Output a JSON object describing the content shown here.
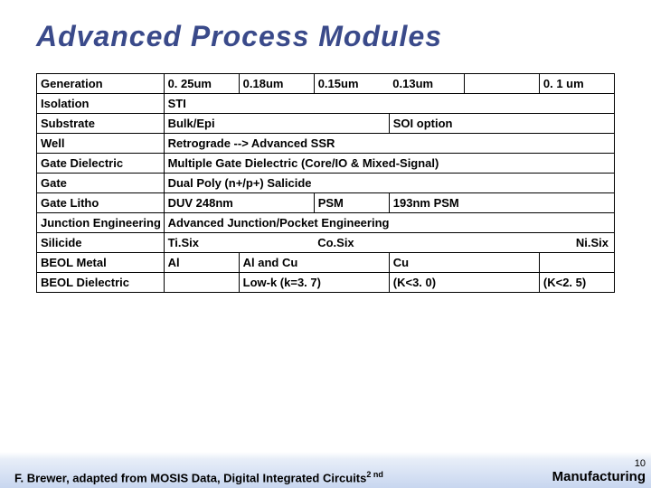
{
  "title": "Advanced Process Modules",
  "page_number": "10",
  "footer_credit": "F. Brewer, adapted from MOSIS Data, Digital Integrated Circuits",
  "footer_sup": "2 nd",
  "footer_right": "Manufacturing",
  "table": {
    "row0": {
      "label": "Generation",
      "c1": "0. 25um",
      "c2": "0.18um",
      "c3": "0.15um",
      "c4": "0.13um",
      "c5": "",
      "c6": "0. 1 um"
    },
    "row1": {
      "label": "Isolation",
      "val": "STI"
    },
    "row2": {
      "label": "Substrate",
      "left": "Bulk/Epi",
      "right": "SOI option"
    },
    "row3": {
      "label": "Well",
      "val": "Retrograde  --> Advanced SSR"
    },
    "row4": {
      "label": "Gate Dielectric",
      "val": "Multiple Gate Dielectric (Core/IO & Mixed-Signal)"
    },
    "row5": {
      "label": "Gate",
      "val": "Dual Poly (n+/p+) Salicide"
    },
    "row6": {
      "label": "Gate Litho",
      "a": "DUV 248nm",
      "b": "PSM",
      "c": "193nm   PSM"
    },
    "row7": {
      "label": "Junction Engineering",
      "val": "Advanced Junction/Pocket Engineering"
    },
    "row8": {
      "label": "Silicide",
      "a": "Ti.Six",
      "b": "Co.Six",
      "c": "Ni.Six"
    },
    "row9": {
      "label": "BEOL Metal",
      "a": "Al",
      "b": "Al and Cu",
      "c": "Cu",
      "d": ""
    },
    "row10": {
      "label": "BEOL Dielectric",
      "a": "",
      "b": "Low-k (k=3. 7)",
      "c": "(K<3. 0)",
      "d": "(K<2. 5)"
    }
  },
  "styling": {
    "title_color": "#3a4a8a",
    "title_fontsize": 32,
    "cell_fontsize": 13,
    "border_color": "#000000",
    "background": "#ffffff",
    "footer_gradient_top": "#ffffff",
    "footer_gradient_bottom": "#c8d6ef"
  }
}
